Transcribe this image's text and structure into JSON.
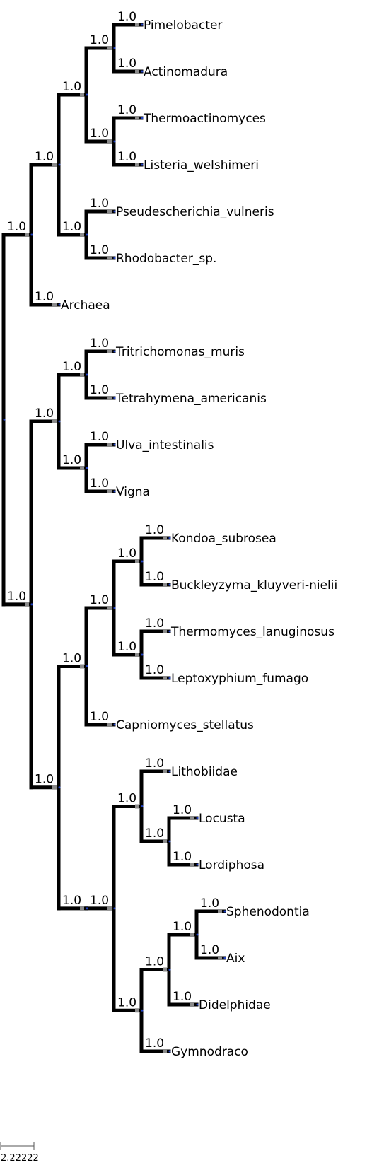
{
  "tree": {
    "support_color": "#000000",
    "branch_color": "#000000",
    "node_color": "#1f3fbf",
    "root": {
      "support": null,
      "children": [
        {
          "support": "1.0",
          "children": [
            {
              "support": "1.0",
              "children": [
                {
                  "support": "1.0",
                  "children": [
                    {
                      "support": "1.0",
                      "children": [
                        {
                          "support": "1.0",
                          "name": "Pimelobacter"
                        },
                        {
                          "support": "1.0",
                          "name": "Actinomadura"
                        }
                      ]
                    },
                    {
                      "support": "1.0",
                      "children": [
                        {
                          "support": "1.0",
                          "name": "Thermoactinomyces"
                        },
                        {
                          "support": "1.0",
                          "name": "Listeria_welshimeri"
                        }
                      ]
                    }
                  ]
                },
                {
                  "support": "1.0",
                  "children": [
                    {
                      "support": "1.0",
                      "name": "Pseudescherichia_vulneris"
                    },
                    {
                      "support": "1.0",
                      "name": "Rhodobacter_sp."
                    }
                  ]
                }
              ]
            },
            {
              "support": "1.0",
              "name": "Archaea"
            }
          ]
        },
        {
          "support": "1.0",
          "children": [
            {
              "support": "1.0",
              "children": [
                {
                  "support": "1.0",
                  "children": [
                    {
                      "support": "1.0",
                      "name": "Tritrichomonas_muris"
                    },
                    {
                      "support": "1.0",
                      "name": "Tetrahymena_americanis"
                    }
                  ]
                },
                {
                  "support": "1.0",
                  "children": [
                    {
                      "support": "1.0",
                      "name": "Ulva_intestinalis"
                    },
                    {
                      "support": "1.0",
                      "name": "Vigna"
                    }
                  ]
                }
              ]
            },
            {
              "support": "1.0",
              "children": [
                {
                  "support": "1.0",
                  "children": [
                    {
                      "support": "1.0",
                      "children": [
                        {
                          "support": "1.0",
                          "children": [
                            {
                              "support": "1.0",
                              "name": "Kondoa_subrosea"
                            },
                            {
                              "support": "1.0",
                              "name": "Buckleyzyma_kluyveri-nielii"
                            }
                          ]
                        },
                        {
                          "support": "1.0",
                          "children": [
                            {
                              "support": "1.0",
                              "name": "Thermomyces_lanuginosus"
                            },
                            {
                              "support": "1.0",
                              "name": "Leptoxyphium_fumago"
                            }
                          ]
                        }
                      ]
                    },
                    {
                      "support": "1.0",
                      "name": "Capniomyces_stellatus"
                    }
                  ]
                },
                {
                  "support": "1.0",
                  "children": [
                    {
                      "support": "1.0",
                      "children": [
                        {
                          "support": "1.0",
                          "children": [
                            {
                              "support": "1.0",
                              "name": "Lithobiidae"
                            },
                            {
                              "support": "1.0",
                              "children": [
                                {
                                  "support": "1.0",
                                  "name": "Locusta"
                                },
                                {
                                  "support": "1.0",
                                  "name": "Lordiphosa"
                                }
                              ]
                            }
                          ]
                        },
                        {
                          "support": "1.0",
                          "children": [
                            {
                              "support": "1.0",
                              "children": [
                                {
                                  "support": "1.0",
                                  "children": [
                                    {
                                      "support": "1.0",
                                      "name": "Sphenodontia"
                                    },
                                    {
                                      "support": "1.0",
                                      "name": "Aix"
                                    }
                                  ]
                                },
                                {
                                  "support": "1.0",
                                  "name": "Didelphidae"
                                }
                              ]
                            },
                            {
                              "support": "1.0",
                              "name": "Gymnodraco"
                            }
                          ]
                        }
                      ]
                    }
                  ]
                }
              ]
            }
          ]
        }
      ]
    }
  },
  "scale_bar": {
    "label": "2.22222"
  }
}
